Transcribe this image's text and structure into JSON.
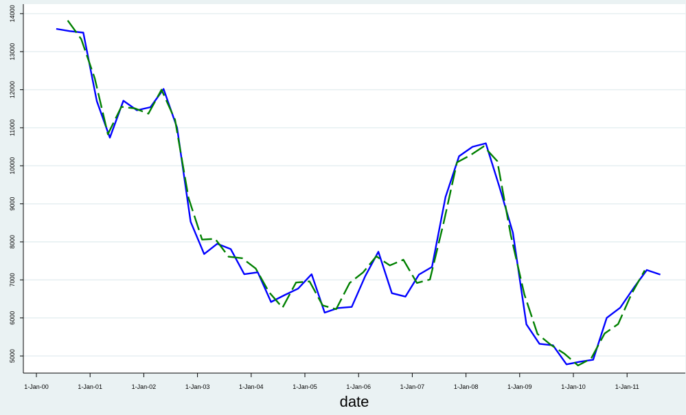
{
  "chart_data": {
    "type": "line",
    "xlabel": "date",
    "ylabel": "",
    "x_tick_labels": [
      "1-Jan-00",
      "1-Jan-01",
      "1-Jan-02",
      "1-Jan-03",
      "1-Jan-04",
      "1-Jan-05",
      "1-Jan-06",
      "1-Jan-07",
      "1-Jan-08",
      "1-Jan-09",
      "1-Jan-10",
      "1-Jan-11"
    ],
    "y_ticks": [
      5000,
      6000,
      7000,
      8000,
      9000,
      10000,
      11000,
      12000,
      13000,
      14000
    ],
    "y_tick_labels": [
      "5000",
      "6000",
      "7000",
      "8000",
      "9000",
      "10000",
      "11000",
      "12000",
      "13000",
      "14000"
    ],
    "ylim": [
      4550,
      14250
    ],
    "xlim": [
      "2000-01-01",
      "2011-12-31"
    ],
    "grid": "horizontal",
    "background": "#eaf2f3",
    "plot_background": "#ffffff",
    "series": [
      {
        "color": "#0000ff",
        "style": "solid",
        "x": [
          "2000-05-15",
          "2000-08-15",
          "2000-11-15",
          "2001-02-15",
          "2001-05-15",
          "2001-08-15",
          "2001-11-15",
          "2002-02-15",
          "2002-05-15",
          "2002-08-15",
          "2002-11-15",
          "2003-02-15",
          "2003-05-15",
          "2003-08-15",
          "2003-11-15",
          "2004-02-15",
          "2004-05-15",
          "2004-08-15",
          "2004-11-15",
          "2005-02-15",
          "2005-05-15",
          "2005-08-15",
          "2005-11-15",
          "2006-02-15",
          "2006-05-15",
          "2006-08-15",
          "2006-11-15",
          "2007-02-15",
          "2007-05-15",
          "2007-08-15",
          "2007-11-15",
          "2008-02-15",
          "2008-05-15",
          "2008-08-15",
          "2008-11-15",
          "2009-02-15",
          "2009-05-15",
          "2009-08-15",
          "2009-11-15",
          "2010-02-15",
          "2010-05-15",
          "2010-08-15",
          "2010-11-15",
          "2011-02-15",
          "2011-05-15",
          "2011-08-15",
          "2011-11-15"
        ],
        "values": [
          13600,
          13540,
          13500,
          11700,
          10740,
          11710,
          11460,
          11540,
          12020,
          11000,
          8530,
          7680,
          7950,
          7810,
          7150,
          7200,
          6420,
          6600,
          6770,
          7150,
          6140,
          6260,
          6290,
          7100,
          7740,
          6650,
          6560,
          7140,
          7340,
          9180,
          10250,
          10500,
          10590,
          9450,
          8240,
          5830,
          5320,
          5280,
          4780,
          4850,
          4900,
          6000,
          6270,
          6790,
          7260,
          7140,
          null
        ]
      },
      {
        "color": "#008000",
        "style": "dashed",
        "x": [
          "2000-08-01",
          "2000-11-01",
          "2001-02-01",
          "2001-05-01",
          "2001-08-01",
          "2001-11-01",
          "2002-02-01",
          "2002-05-01",
          "2002-08-01",
          "2002-11-01",
          "2003-02-01",
          "2003-05-01",
          "2003-08-01",
          "2003-11-01",
          "2004-02-01",
          "2004-05-01",
          "2004-08-01",
          "2004-11-01",
          "2005-02-01",
          "2005-05-01",
          "2005-08-01",
          "2005-11-01",
          "2006-02-01",
          "2006-05-01",
          "2006-08-01",
          "2006-11-01",
          "2007-02-01",
          "2007-05-01",
          "2007-08-01",
          "2007-11-01",
          "2008-02-01",
          "2008-05-01",
          "2008-08-01",
          "2008-11-01",
          "2009-02-01",
          "2009-05-01",
          "2009-08-01",
          "2009-11-01",
          "2010-02-01",
          "2010-05-01",
          "2010-08-01",
          "2010-11-01",
          "2011-02-01",
          "2011-05-01",
          "2011-08-01"
        ],
        "values": [
          13820,
          13330,
          12300,
          10830,
          11550,
          11510,
          11370,
          12000,
          11210,
          9150,
          8060,
          8080,
          7610,
          7570,
          7300,
          6680,
          6270,
          6930,
          6960,
          6330,
          6230,
          6920,
          7200,
          7620,
          7380,
          7530,
          6920,
          7010,
          8480,
          10090,
          10280,
          10510,
          10120,
          8170,
          6620,
          5580,
          5290,
          5060,
          4750,
          4930,
          5590,
          5840,
          6640,
          7250,
          null
        ]
      }
    ]
  }
}
